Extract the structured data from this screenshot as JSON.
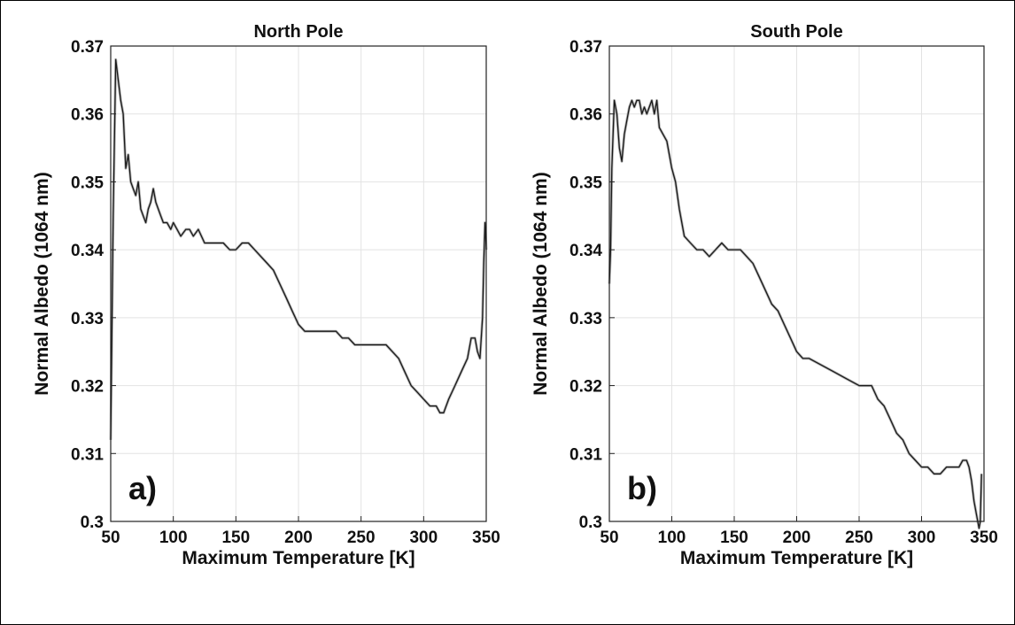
{
  "chart_data": [
    {
      "type": "line",
      "title": "North Pole",
      "xlabel": "Maximum Temperature [K]",
      "ylabel": "Normal Albedo (1064 nm)",
      "panel_label": "a)",
      "xlim": [
        50,
        350
      ],
      "ylim": [
        0.3,
        0.37
      ],
      "xticks": [
        "50",
        "100",
        "150",
        "200",
        "250",
        "300",
        "350"
      ],
      "yticks": [
        "0.3",
        "0.31",
        "0.32",
        "0.33",
        "0.34",
        "0.35",
        "0.36",
        "0.37"
      ],
      "grid": true,
      "series": [
        {
          "x": [
            50,
            52,
            54,
            56,
            58,
            60,
            62,
            64,
            66,
            68,
            70,
            72,
            74,
            76,
            78,
            80,
            82,
            84,
            86,
            88,
            90,
            92,
            95,
            98,
            100,
            103,
            106,
            110,
            113,
            116,
            120,
            125,
            130,
            135,
            140,
            145,
            150,
            155,
            160,
            165,
            170,
            175,
            180,
            185,
            190,
            195,
            200,
            205,
            210,
            215,
            220,
            225,
            230,
            235,
            240,
            245,
            250,
            255,
            260,
            265,
            270,
            275,
            280,
            285,
            290,
            295,
            300,
            305,
            310,
            313,
            316,
            320,
            325,
            330,
            335,
            338,
            341,
            343,
            345,
            347,
            348,
            349,
            350
          ],
          "y": [
            0.312,
            0.345,
            0.368,
            0.365,
            0.362,
            0.36,
            0.352,
            0.354,
            0.35,
            0.349,
            0.348,
            0.35,
            0.346,
            0.345,
            0.344,
            0.346,
            0.347,
            0.349,
            0.347,
            0.346,
            0.345,
            0.344,
            0.344,
            0.343,
            0.344,
            0.343,
            0.342,
            0.343,
            0.343,
            0.342,
            0.343,
            0.341,
            0.341,
            0.341,
            0.341,
            0.34,
            0.34,
            0.341,
            0.341,
            0.34,
            0.339,
            0.338,
            0.337,
            0.335,
            0.333,
            0.331,
            0.329,
            0.328,
            0.328,
            0.328,
            0.328,
            0.328,
            0.328,
            0.327,
            0.327,
            0.326,
            0.326,
            0.326,
            0.326,
            0.326,
            0.326,
            0.325,
            0.324,
            0.322,
            0.32,
            0.319,
            0.318,
            0.317,
            0.317,
            0.316,
            0.316,
            0.318,
            0.32,
            0.322,
            0.324,
            0.327,
            0.327,
            0.325,
            0.324,
            0.33,
            0.338,
            0.344,
            0.34
          ]
        }
      ]
    },
    {
      "type": "line",
      "title": "South Pole",
      "xlabel": "Maximum Temperature [K]",
      "ylabel": "Normal Albedo (1064 nm)",
      "panel_label": "b)",
      "xlim": [
        50,
        350
      ],
      "ylim": [
        0.3,
        0.37
      ],
      "xticks": [
        "50",
        "100",
        "150",
        "200",
        "250",
        "300",
        "350"
      ],
      "yticks": [
        "0.3",
        "0.31",
        "0.32",
        "0.33",
        "0.34",
        "0.35",
        "0.36",
        "0.37"
      ],
      "grid": true,
      "series": [
        {
          "x": [
            50,
            51,
            52,
            54,
            56,
            58,
            60,
            62,
            64,
            66,
            68,
            70,
            72,
            74,
            76,
            78,
            80,
            82,
            84,
            86,
            88,
            90,
            93,
            96,
            100,
            103,
            106,
            110,
            115,
            120,
            125,
            130,
            135,
            140,
            145,
            150,
            155,
            160,
            165,
            170,
            175,
            180,
            185,
            190,
            195,
            200,
            205,
            210,
            220,
            230,
            240,
            250,
            260,
            265,
            270,
            275,
            280,
            285,
            290,
            295,
            300,
            305,
            310,
            315,
            320,
            325,
            330,
            333,
            336,
            338,
            340,
            342,
            344,
            346,
            347,
            348
          ],
          "y": [
            0.335,
            0.34,
            0.352,
            0.362,
            0.36,
            0.355,
            0.353,
            0.357,
            0.359,
            0.361,
            0.362,
            0.361,
            0.362,
            0.362,
            0.36,
            0.361,
            0.36,
            0.361,
            0.362,
            0.36,
            0.362,
            0.358,
            0.357,
            0.356,
            0.352,
            0.35,
            0.346,
            0.342,
            0.341,
            0.34,
            0.34,
            0.339,
            0.34,
            0.341,
            0.34,
            0.34,
            0.34,
            0.339,
            0.338,
            0.336,
            0.334,
            0.332,
            0.331,
            0.329,
            0.327,
            0.325,
            0.324,
            0.324,
            0.323,
            0.322,
            0.321,
            0.32,
            0.32,
            0.318,
            0.317,
            0.315,
            0.313,
            0.312,
            0.31,
            0.309,
            0.308,
            0.308,
            0.307,
            0.307,
            0.308,
            0.308,
            0.308,
            0.309,
            0.309,
            0.308,
            0.306,
            0.303,
            0.301,
            0.299,
            0.3,
            0.307
          ]
        }
      ]
    }
  ]
}
